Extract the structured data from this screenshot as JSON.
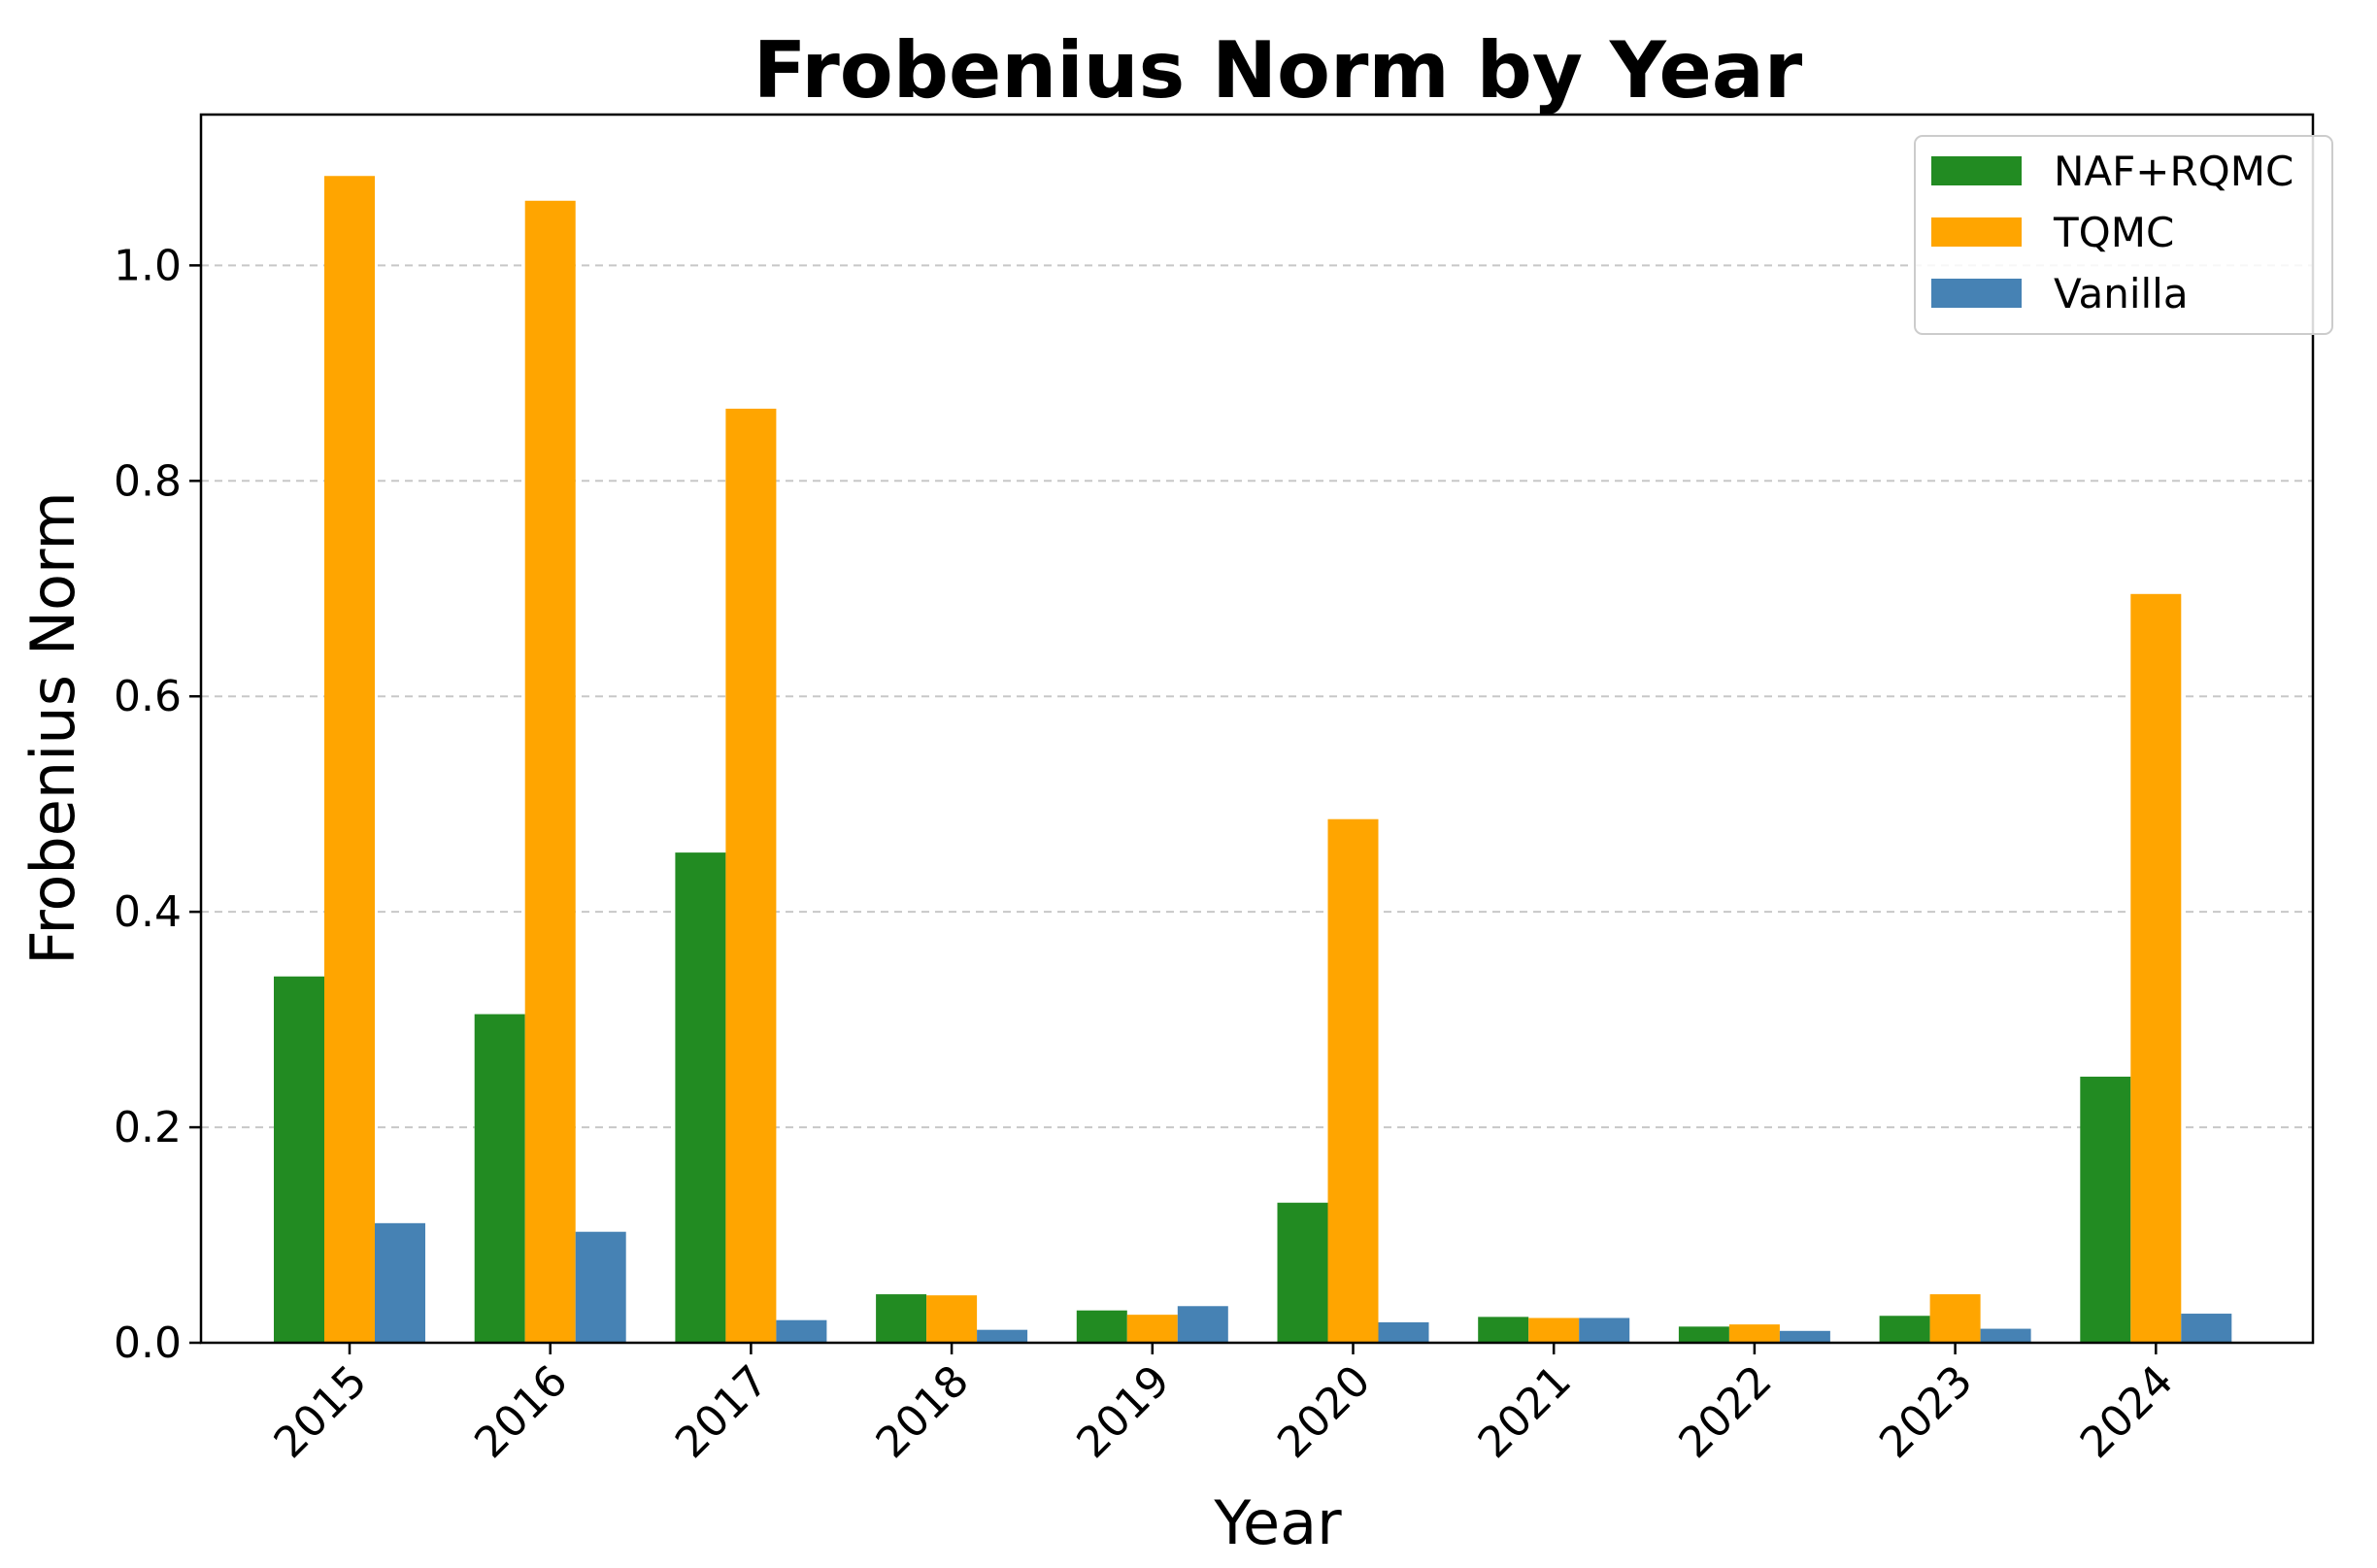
{
  "chart_data": {
    "type": "bar",
    "title": "Frobenius Norm by Year",
    "xlabel": "Year",
    "ylabel": "Frobenius Norm",
    "categories": [
      "2015",
      "2016",
      "2017",
      "2018",
      "2019",
      "2020",
      "2021",
      "2022",
      "2023",
      "2024"
    ],
    "ylim": [
      0,
      1.14
    ],
    "yticks": [
      0.0,
      0.2,
      0.4,
      0.6,
      0.8,
      1.0
    ],
    "ytick_labels": [
      "0.0",
      "0.2",
      "0.4",
      "0.6",
      "0.8",
      "1.0"
    ],
    "grid": "y-dashed",
    "legend_position": "top-right",
    "series": [
      {
        "name": "NAF+RQMC",
        "color": "#228b22",
        "values": [
          0.34,
          0.305,
          0.455,
          0.045,
          0.03,
          0.13,
          0.024,
          0.015,
          0.025,
          0.247
        ]
      },
      {
        "name": "TQMC",
        "color": "#ffa500",
        "values": [
          1.083,
          1.06,
          0.867,
          0.044,
          0.026,
          0.486,
          0.023,
          0.017,
          0.045,
          0.695
        ]
      },
      {
        "name": "Vanilla",
        "color": "#4682b4",
        "values": [
          0.111,
          0.103,
          0.021,
          0.012,
          0.034,
          0.019,
          0.023,
          0.011,
          0.013,
          0.027
        ]
      }
    ]
  }
}
